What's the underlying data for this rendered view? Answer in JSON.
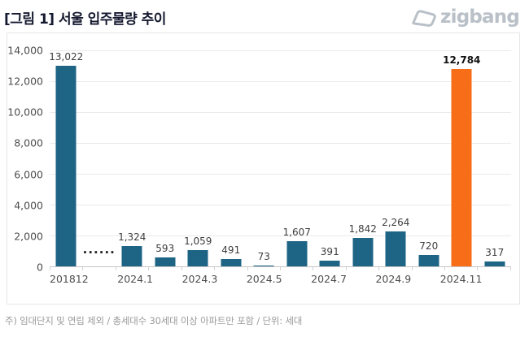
{
  "header": {
    "title": "[그림 1] 서울 입주물량 추이",
    "logo_text": "zigbang"
  },
  "footnote": "주) 임대단지 및 연립 제외 / 총세대수 30세대 이상 아파트만 포함 / 단위: 세대",
  "colors": {
    "bar": "#1e6484",
    "highlight": "#f86d17",
    "title_text": "#161a30",
    "logo_gray": "#b9c0c7",
    "gridline": "#eaeaea",
    "axis_line": "#c6c6c6",
    "tick": "#d2d2d2",
    "axis_text": "#4d4d4d",
    "footnote_text": "#9b9b9b"
  },
  "chart_data": {
    "type": "bar",
    "title": "[그림 1] 서울 입주물량 추이",
    "xlabel": "",
    "ylabel": "",
    "unit": "세대",
    "categories": [
      "201812",
      "2024.1",
      "2024.2",
      "2024.3",
      "2024.4",
      "2024.5",
      "2024.6",
      "2024.7",
      "2024.8",
      "2024.9",
      "2024.10",
      "2024.11",
      "2024.12"
    ],
    "values": [
      13022,
      1324,
      593,
      1059,
      491,
      73,
      1607,
      391,
      1842,
      2264,
      720,
      12784,
      317
    ],
    "value_labels": [
      "13,022",
      "1,324",
      "593",
      "1,059",
      "491",
      "73",
      "1,607",
      "391",
      "1,842",
      "2,264",
      "720",
      "12,784",
      "317"
    ],
    "highlight_index": 11,
    "bold_value_indices": [
      11
    ],
    "gap_after_index": 0,
    "gap_marker": "······",
    "ylim": [
      0,
      14000
    ],
    "ytick_values": [
      0,
      2000,
      4000,
      6000,
      8000,
      10000,
      12000,
      14000
    ],
    "ytick_labels": [
      "0",
      "2,000",
      "4,000",
      "6,000",
      "8,000",
      "10,000",
      "12,000",
      "14,000"
    ],
    "x_axis_labels_shown": [
      "201812",
      "2024.1",
      "2024.3",
      "2024.5",
      "2024.7",
      "2024.9",
      "2024.11"
    ],
    "grid": true,
    "legend": false
  }
}
